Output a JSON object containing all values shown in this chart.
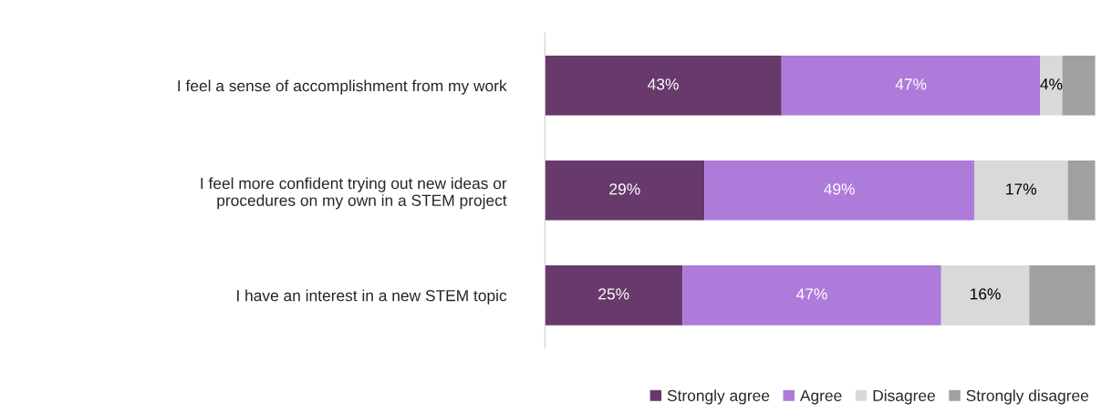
{
  "chart_data": {
    "type": "bar",
    "orientation": "horizontal",
    "stacked": true,
    "tick_labels": "y",
    "legend": "bottom right",
    "grid": false,
    "categories": [
      "I feel a sense of accomplishment from my work",
      "I feel more confident trying out new ideas or\nprocedures on my own in a STEM project",
      "I have an interest in a new STEM topic"
    ],
    "series": [
      {
        "name": "Strongly agree",
        "color": "#673a6b",
        "values": [
          43,
          29,
          25
        ],
        "value_labels": [
          "43%",
          "29%",
          "25%"
        ]
      },
      {
        "name": "Agree",
        "color": "#ad7bd9",
        "values": [
          47,
          49,
          47
        ],
        "value_labels": [
          "47%",
          "49%",
          "47%"
        ]
      },
      {
        "name": "Disagree",
        "color": "#d9d9d9",
        "values": [
          4,
          17,
          16
        ],
        "value_labels": [
          "4%",
          "17%",
          "16%"
        ]
      },
      {
        "name": "Strongly disagree",
        "color": "#a0a0a0",
        "values": [
          6,
          5,
          12
        ],
        "value_labels": [
          null,
          null,
          null
        ]
      }
    ]
  }
}
